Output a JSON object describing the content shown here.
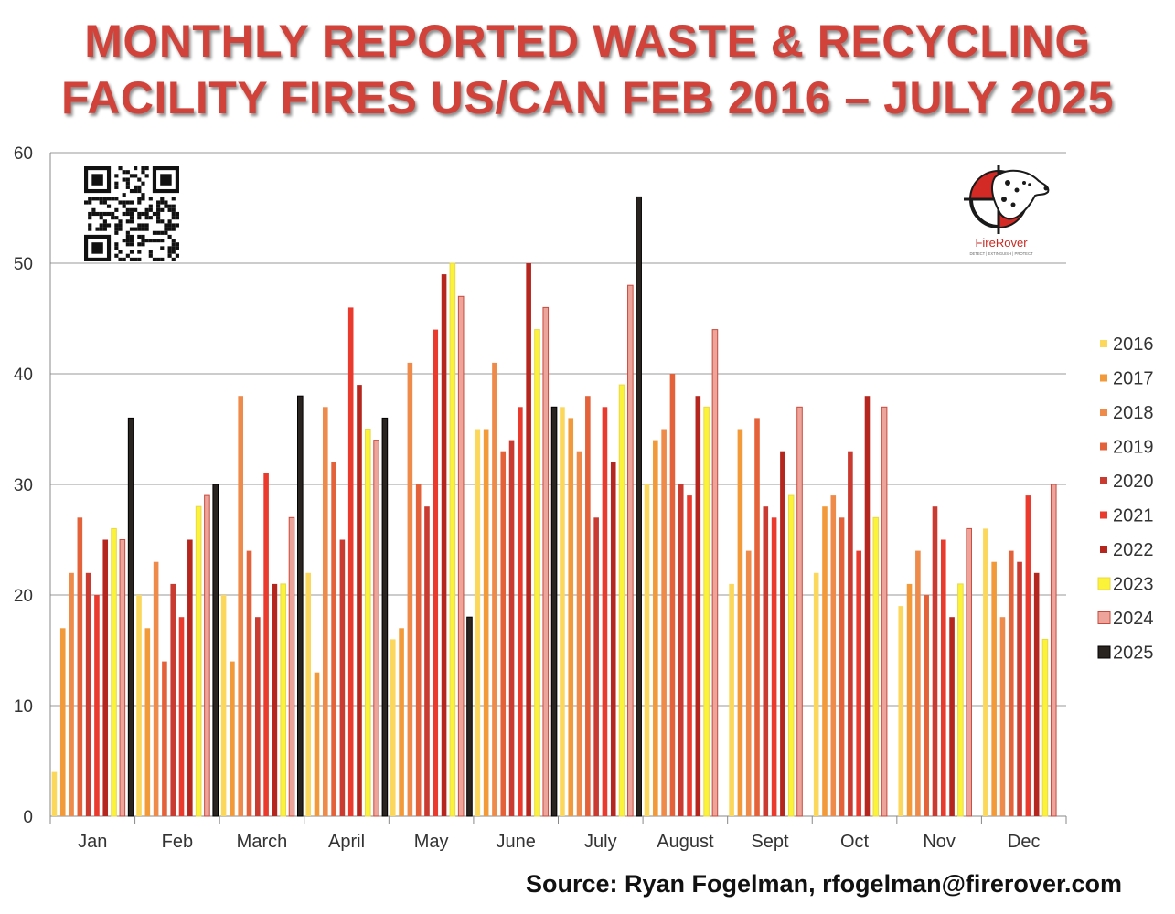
{
  "title": {
    "line1": "MONTHLY REPORTED WASTE & RECYCLING",
    "line2": "FACILITY FIRES US/CAN FEB 2016 – JULY 2025"
  },
  "source": "Source: Ryan Fogelman, rfogelman@firerover.com",
  "logo": {
    "name": "FireRover",
    "tagline": "DETECT | EXTINGUISH | PROTECT",
    "icon": "dalmatian-crosshair-icon"
  },
  "qr": {
    "icon": "qr-code-icon"
  },
  "chart_data": {
    "type": "bar",
    "title": "MONTHLY REPORTED WASTE & RECYCLING FACILITY FIRES US/CAN FEB 2016 – JULY 2025",
    "xlabel": "",
    "ylabel": "",
    "ylim": [
      0,
      60
    ],
    "yticks": [
      0,
      10,
      20,
      30,
      40,
      50,
      60
    ],
    "grid": true,
    "legend_position": "right",
    "categories": [
      "Jan",
      "Feb",
      "March",
      "April",
      "May",
      "June",
      "July",
      "August",
      "Sept",
      "Oct",
      "Nov",
      "Dec"
    ],
    "series": [
      {
        "name": "2016",
        "color": "#fbd85c",
        "values": [
          4,
          20,
          20,
          22,
          16,
          35,
          37,
          30,
          21,
          22,
          19,
          26
        ]
      },
      {
        "name": "2017",
        "color": "#f29a3a",
        "values": [
          17,
          17,
          14,
          13,
          17,
          35,
          36,
          34,
          35,
          28,
          21,
          23
        ]
      },
      {
        "name": "2018",
        "color": "#ee8a4a",
        "values": [
          22,
          23,
          38,
          37,
          41,
          41,
          33,
          35,
          24,
          29,
          24,
          18
        ]
      },
      {
        "name": "2019",
        "color": "#e4623a",
        "values": [
          27,
          14,
          24,
          32,
          30,
          33,
          38,
          40,
          36,
          27,
          20,
          24
        ]
      },
      {
        "name": "2020",
        "color": "#c93a30",
        "values": [
          22,
          21,
          18,
          25,
          28,
          34,
          27,
          30,
          28,
          33,
          28,
          23
        ]
      },
      {
        "name": "2021",
        "color": "#ea3a2e",
        "values": [
          20,
          18,
          31,
          46,
          44,
          37,
          37,
          29,
          27,
          24,
          25,
          29
        ]
      },
      {
        "name": "2022",
        "color": "#b5261f",
        "values": [
          25,
          25,
          21,
          39,
          49,
          50,
          32,
          38,
          33,
          38,
          18,
          22
        ]
      },
      {
        "name": "2023",
        "color": "#fbf23a",
        "values": [
          26,
          28,
          21,
          35,
          50,
          44,
          39,
          37,
          29,
          27,
          21,
          16
        ]
      },
      {
        "name": "2024",
        "color": "#eda59b",
        "values": [
          25,
          29,
          27,
          34,
          47,
          46,
          48,
          44,
          37,
          37,
          26,
          30
        ]
      },
      {
        "name": "2025",
        "color": "#2a2420",
        "values": [
          36,
          30,
          38,
          36,
          18,
          37,
          56,
          null,
          null,
          null,
          null,
          null
        ]
      }
    ]
  }
}
